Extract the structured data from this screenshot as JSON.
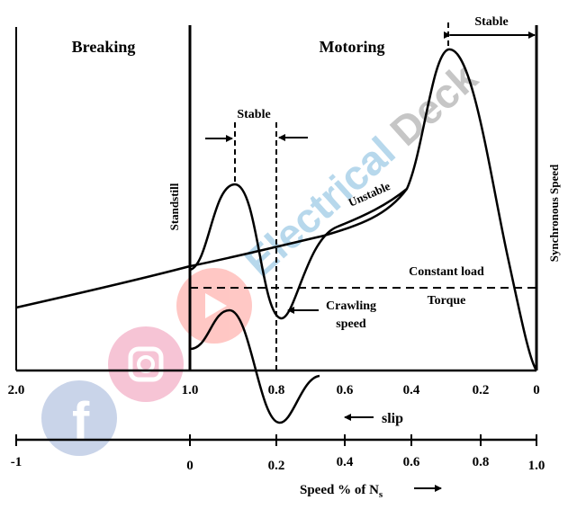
{
  "labels": {
    "breaking": "Breaking",
    "motoring": "Motoring",
    "stable_top": "Stable",
    "stable_mid": "Stable",
    "standstill": "Standstill",
    "synchronous_speed": "Synchronous  Speed",
    "unstable": "Unstable",
    "constant_load": "Constant load",
    "torque": "Torque",
    "crawling": "Crawling",
    "speed_word": "speed",
    "slip": "slip",
    "speed_axis_label": "Speed % of N",
    "speed_axis_sub": "s"
  },
  "slip_ticks": [
    "2.0",
    "1.0",
    "0.8",
    "0.6",
    "0.4",
    "0.2",
    "0"
  ],
  "speed_ticks": [
    "-1",
    "0",
    "0.2",
    "0.4",
    "0.6",
    "0.8",
    "1.0"
  ],
  "watermark": {
    "text": "Electrical Deck",
    "colors": {
      "text": "#9fcbe6",
      "deck": "#bcbcbc",
      "facebook": "#4267b2",
      "instagram": "#e1306c",
      "youtube": "#ff3b30"
    }
  }
}
